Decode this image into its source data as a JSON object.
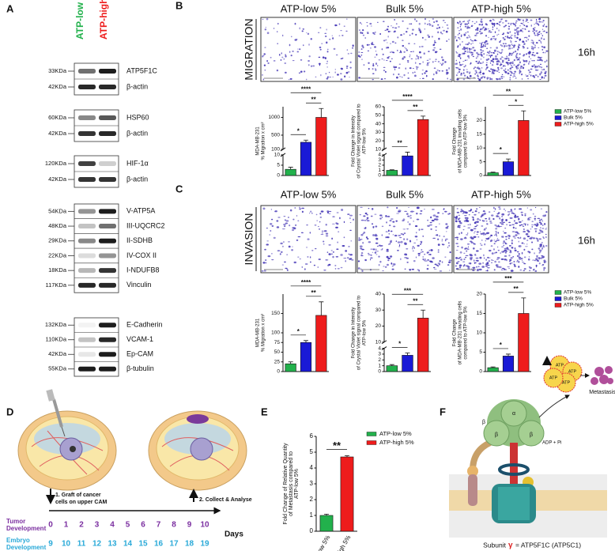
{
  "panel_labels": [
    "A",
    "B",
    "C",
    "D",
    "E",
    "F"
  ],
  "blot": {
    "columns": [
      "ATP-low 5%",
      "ATP-high 5%"
    ],
    "groups": [
      [
        {
          "mw": "33KDa",
          "protein": "ATP5F1C"
        },
        {
          "mw": "42KDa",
          "protein": "β-actin"
        }
      ],
      [
        {
          "mw": "60KDa",
          "protein": "HSP60"
        },
        {
          "mw": "42KDa",
          "protein": "β-actin"
        }
      ],
      [
        {
          "mw": "120KDa",
          "protein": "HIF-1α"
        },
        {
          "mw": "42KDa",
          "protein": "β-actin"
        }
      ],
      [
        {
          "mw": "54KDa",
          "protein": "V-ATP5A"
        },
        {
          "mw": "48KDa",
          "protein": "III-UQCRC2"
        },
        {
          "mw": "29KDa",
          "protein": "II-SDHB"
        },
        {
          "mw": "22KDa",
          "protein": "IV-COX II"
        },
        {
          "mw": "18KDa",
          "protein": "I-NDUFB8"
        },
        {
          "mw": "117KDa",
          "protein": "Vinculin"
        }
      ],
      [
        {
          "mw": "132KDa",
          "protein": "E-Cadherin"
        },
        {
          "mw": "110KDa",
          "protein": "VCAM-1"
        },
        {
          "mw": "42KDa",
          "protein": "Ep-CAM"
        },
        {
          "mw": "55KDa",
          "protein": "β-tubulin"
        }
      ]
    ]
  },
  "assays": [
    {
      "name": "MIGRATION",
      "time": "16h",
      "conditions": [
        "ATP-low 5%",
        "Bulk 5%",
        "ATP-high 5%"
      ]
    },
    {
      "name": "INVASION",
      "time": "16h",
      "conditions": [
        "ATP-low 5%",
        "Bulk 5%",
        "ATP-high 5%"
      ]
    }
  ],
  "chart_data": [
    {
      "type": "bar",
      "ylabel": [
        "MDA-MB-231",
        "% Migration x cm²"
      ],
      "categories": [
        null,
        null,
        null
      ],
      "colors": [
        "#22b14c",
        "#1a1ad6",
        "#ee1c1c"
      ],
      "values": [
        3,
        300,
        1000
      ],
      "errors": [
        1,
        60,
        250
      ],
      "ylim": [
        0,
        1300
      ],
      "break": [
        10,
        100
      ],
      "yticks": [
        0,
        5,
        10,
        100,
        500,
        1000
      ],
      "significance": [
        "*",
        "****",
        "**"
      ]
    },
    {
      "type": "bar",
      "ylabel": [
        "Fold Change in Intensity",
        "of Crystal Violet signal compared to",
        "ATP-low 5%"
      ],
      "categories": [
        null,
        null,
        null
      ],
      "colors": [
        "#22b14c",
        "#1a1ad6",
        "#ee1c1c"
      ],
      "values": [
        1,
        3.8,
        45
      ],
      "errors": [
        0.1,
        0.3,
        4
      ],
      "ylim": [
        0,
        60
      ],
      "break": [
        4,
        10
      ],
      "yticks": [
        0,
        1,
        2,
        3,
        4,
        10,
        20,
        30,
        40,
        50,
        60
      ],
      "significance": [
        "**",
        "****",
        "**"
      ]
    },
    {
      "type": "bar",
      "ylabel": [
        "Fold Change",
        "of MDA-MB-231 invading cells",
        "compared to ATP-low 5%"
      ],
      "categories": [
        "ATP-low 5%",
        "Bulk 5%",
        "ATP-high 5%"
      ],
      "colors": [
        "#22b14c",
        "#1a1ad6",
        "#ee1c1c"
      ],
      "values": [
        1,
        5,
        20
      ],
      "errors": [
        0.2,
        1,
        3.5
      ],
      "ylim": [
        0,
        25
      ],
      "yticks": [
        0,
        5,
        10,
        15,
        20
      ],
      "significance": [
        "*",
        "**",
        "*"
      ],
      "legend": true
    },
    {
      "type": "bar",
      "ylabel": [
        "MDA-MB-231",
        "% Migration x cm²"
      ],
      "categories": [
        null,
        null,
        null
      ],
      "colors": [
        "#22b14c",
        "#1a1ad6",
        "#ee1c1c"
      ],
      "values": [
        20,
        75,
        145
      ],
      "errors": [
        5,
        5,
        35
      ],
      "ylim": [
        0,
        200
      ],
      "yticks": [
        0,
        25,
        50,
        75,
        100,
        150
      ],
      "significance": [
        "*",
        "****",
        "**"
      ]
    },
    {
      "type": "bar",
      "ylabel": [
        "Fold Change in Intensity",
        "of Crystal Violet signal compared to",
        "ATP-low 5%"
      ],
      "categories": [
        null,
        null,
        null
      ],
      "colors": [
        "#22b14c",
        "#1a1ad6",
        "#ee1c1c"
      ],
      "values": [
        1,
        2.8,
        25
      ],
      "errors": [
        0.2,
        0.4,
        5
      ],
      "ylim": [
        0,
        40
      ],
      "break": [
        4,
        10
      ],
      "yticks": [
        0,
        1,
        2,
        3,
        4,
        10,
        20,
        30,
        40
      ],
      "significance": [
        "*",
        "***",
        "**"
      ]
    },
    {
      "type": "bar",
      "ylabel": [
        "Fold Change",
        "of MDA-MB-231 invading cells",
        "compared to ATP-low 5%"
      ],
      "categories": [
        "ATP-low 5%",
        "Bulk 5%",
        "ATP-high 5%"
      ],
      "colors": [
        "#22b14c",
        "#1a1ad6",
        "#ee1c1c"
      ],
      "values": [
        1,
        4,
        15
      ],
      "errors": [
        0.2,
        0.5,
        4
      ],
      "ylim": [
        0,
        20
      ],
      "yticks": [
        0,
        5,
        10,
        15,
        20
      ],
      "significance": [
        "*",
        "***",
        "**"
      ],
      "legend": true
    },
    {
      "type": "bar",
      "ylabel": [
        "Fold Change of Relative Quantity",
        "of Metastasis compared to",
        "ATP-low 5%"
      ],
      "categories": [
        "ATP-low 5%",
        "ATP-high 5%"
      ],
      "colors": [
        "#22b14c",
        "#ee1c1c"
      ],
      "values": [
        1,
        4.7
      ],
      "errors": [
        0.08,
        0.08
      ],
      "ylim": [
        0,
        6
      ],
      "yticks": [
        0,
        1,
        2,
        3,
        4,
        5,
        6
      ],
      "significance": [
        "**"
      ],
      "legend": true,
      "xlabels": true
    }
  ],
  "timeline": {
    "steps": [
      [
        "1. Graft of cancer",
        "cells on upper CAM"
      ],
      [
        "2. Collect & Analyse"
      ]
    ],
    "rows": [
      {
        "label": [
          "Tumor",
          "Development"
        ],
        "days": [
          0,
          1,
          2,
          3,
          4,
          5,
          6,
          7,
          8,
          9,
          10
        ]
      },
      {
        "label": [
          "Embryo",
          "Development"
        ],
        "days": [
          9,
          10,
          11,
          12,
          13,
          14,
          15,
          16,
          17,
          18,
          19
        ]
      }
    ],
    "unit": "Days"
  },
  "mechanism": {
    "subunits": [
      "α",
      "β",
      "β",
      "β"
    ],
    "reaction": "ADP + Pi",
    "product": [
      "ATP",
      "ATP",
      "ATP",
      "ATP"
    ],
    "outcome": "Metastasis",
    "caption": [
      "Subunit",
      "γ",
      "= ATP5F1C (ATP5C1)"
    ]
  }
}
